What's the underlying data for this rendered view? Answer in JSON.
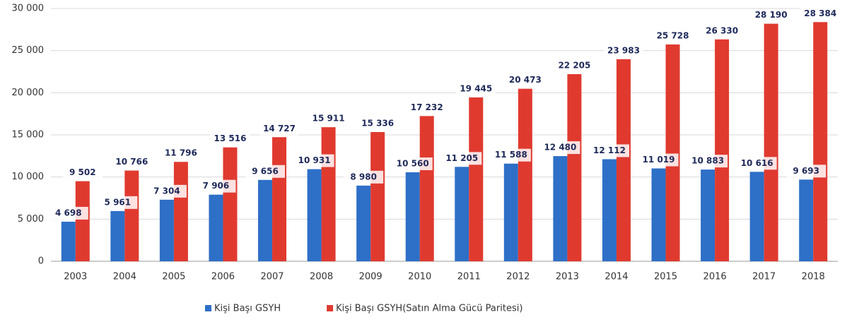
{
  "chart_data": {
    "type": "bar",
    "categories": [
      "2003",
      "2004",
      "2005",
      "2006",
      "2007",
      "2008",
      "2009",
      "2010",
      "2011",
      "2012",
      "2013",
      "2014",
      "2015",
      "2016",
      "2017",
      "2018"
    ],
    "series": [
      {
        "name": "Kişi Başı GSYH",
        "color": "#2e6fc7",
        "values": [
          4698,
          5961,
          7304,
          7906,
          9656,
          10931,
          8980,
          10560,
          11205,
          11588,
          12480,
          12112,
          11019,
          10883,
          10616,
          9693
        ],
        "value_labels": [
          "4 698",
          "5 961",
          "7 304",
          "7 906",
          "9 656",
          "10 931",
          "8 980",
          "10 560",
          "11 205",
          "11 588",
          "12 480",
          "12 112",
          "11 019",
          "10 883",
          "10 616",
          "9 693"
        ]
      },
      {
        "name": "Kişi Başı GSYH(Satın Alma Gücü Paritesi)",
        "color": "#e03a2f",
        "values": [
          9502,
          10766,
          11796,
          13516,
          14727,
          15911,
          15336,
          17232,
          19445,
          20473,
          22205,
          23983,
          25728,
          26330,
          28190,
          28384
        ],
        "value_labels": [
          "9 502",
          "10 766",
          "11 796",
          "13 516",
          "14 727",
          "15 911",
          "15 336",
          "17 232",
          "19 445",
          "20 473",
          "22 205",
          "23 983",
          "25 728",
          "26 330",
          "28 190",
          "28 384"
        ]
      }
    ],
    "ylim": [
      0,
      30000
    ],
    "yticks": [
      0,
      {
        "value": 5000,
        "label": "5 000"
      },
      {
        "value": 10000,
        "label": "10 000"
      },
      {
        "value": 15000,
        "label": "15 000"
      },
      {
        "value": 20000,
        "label": "20 000"
      },
      {
        "value": 25000,
        "label": "25 000"
      },
      {
        "value": 30000,
        "label": "30 000"
      }
    ],
    "grid": true,
    "legend": "bottom"
  }
}
